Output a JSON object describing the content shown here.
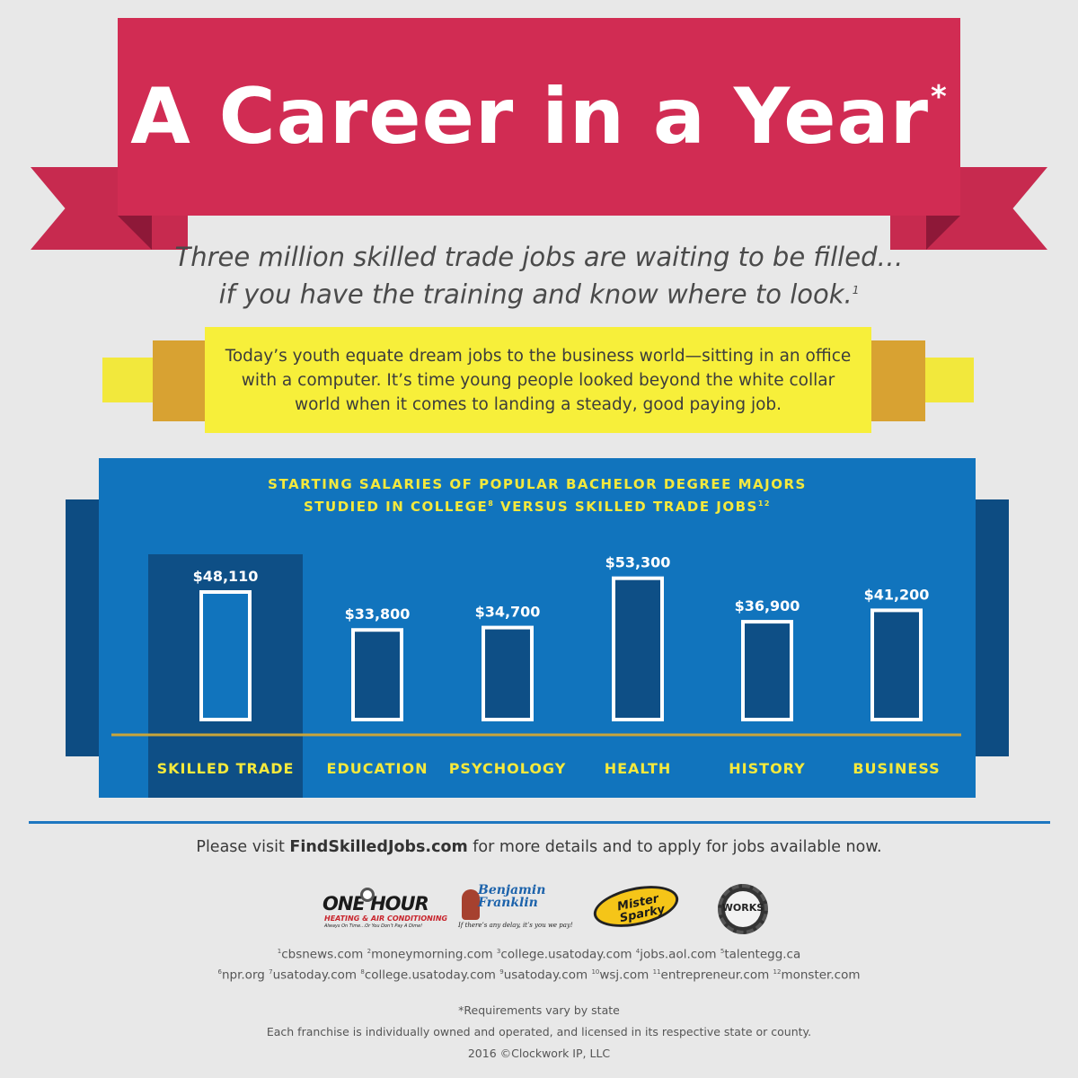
{
  "banner": {
    "title": "A Career in a Year",
    "asterisk": "*"
  },
  "subtitle": {
    "line1": "Three million skilled trade jobs are waiting to be filled…",
    "line2": "if you have the training and know where to look.",
    "line2_ref": "1"
  },
  "band": {
    "text": "Today’s youth equate dream jobs to the business world—sitting in an office with a computer. It’s time young people looked beyond the white collar world when it comes to landing a steady, good paying job."
  },
  "chart_data": {
    "type": "bar",
    "title_line1": "STARTING SALARIES OF POPULAR BACHELOR DEGREE MAJORS",
    "title_line2a": "STUDIED IN COLLEGE",
    "title_ref1": "8",
    "title_line2b": " VERSUS SKILLED TRADE JOBS",
    "title_ref2": "12",
    "categories": [
      "SKILLED TRADE",
      "EDUCATION",
      "PSYCHOLOGY",
      "HEALTH",
      "HISTORY",
      "BUSINESS"
    ],
    "values": [
      48110,
      33800,
      34700,
      53300,
      36900,
      41200
    ],
    "value_labels": [
      "$48,110",
      "$33,800",
      "$34,700",
      "$53,300",
      "$36,900",
      "$41,200"
    ],
    "highlighted_category": "SKILLED TRADE",
    "colors": {
      "panel": "#1174bd",
      "bar_fill": "#0e4f86",
      "highlight_bar_fill": "#1174bd",
      "bar_stroke": "#ffffff",
      "label": "#f5e93c",
      "value_label": "#ffffff",
      "baseline": "#c9a53a"
    }
  },
  "footer": {
    "visit_prefix": "Please visit ",
    "visit_site": "FindSkilledJobs.com",
    "visit_suffix": " for more details and to apply for jobs available now.",
    "logos": {
      "one_hour_main": "ONE HOUR",
      "one_hour_sub": "HEATING & AIR CONDITIONING",
      "one_hour_tag": "Always On Time…Or You Don’t Pay A Dime!",
      "ben_franklin": "Benjamin Franklin",
      "ben_franklin_tag": "If there’s any delay, it’s you we pay!",
      "mister_sparky": "Mister Sparky",
      "works": "WORKS"
    },
    "sources": [
      {
        "ref": "1",
        "name": "cbsnews.com"
      },
      {
        "ref": "2",
        "name": "moneymorning.com"
      },
      {
        "ref": "3",
        "name": "college.usatoday.com"
      },
      {
        "ref": "4",
        "name": "jobs.aol.com"
      },
      {
        "ref": "5",
        "name": "talentegg.ca"
      },
      {
        "ref": "6",
        "name": "npr.org"
      },
      {
        "ref": "7",
        "name": "usatoday.com"
      },
      {
        "ref": "8",
        "name": "college.usatoday.com"
      },
      {
        "ref": "9",
        "name": "usatoday.com"
      },
      {
        "ref": "10",
        "name": "wsj.com"
      },
      {
        "ref": "11",
        "name": "entrepreneur.com"
      },
      {
        "ref": "12",
        "name": "monster.com"
      }
    ],
    "note_requirements": "*Requirements vary by state",
    "note_franchise": "Each franchise is individually owned and operated, and licensed in its respective state or county.",
    "copyright": "2016 ©Clockwork IP, LLC"
  }
}
